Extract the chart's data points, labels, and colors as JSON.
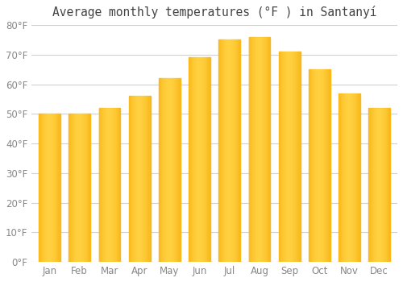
{
  "title": "Average monthly temperatures (°F ) in Santanyí",
  "months": [
    "Jan",
    "Feb",
    "Mar",
    "Apr",
    "May",
    "Jun",
    "Jul",
    "Aug",
    "Sep",
    "Oct",
    "Nov",
    "Dec"
  ],
  "values": [
    50,
    50,
    52,
    56,
    62,
    69,
    75,
    76,
    71,
    65,
    57,
    52
  ],
  "bar_color_dark": "#F5A800",
  "bar_color_light": "#FFD040",
  "background_color": "#ffffff",
  "grid_color": "#d0d0d0",
  "text_color": "#888888",
  "ylim": [
    0,
    80
  ],
  "yticks": [
    0,
    10,
    20,
    30,
    40,
    50,
    60,
    70,
    80
  ],
  "title_fontsize": 10.5,
  "tick_fontsize": 8.5,
  "bar_width": 0.72
}
